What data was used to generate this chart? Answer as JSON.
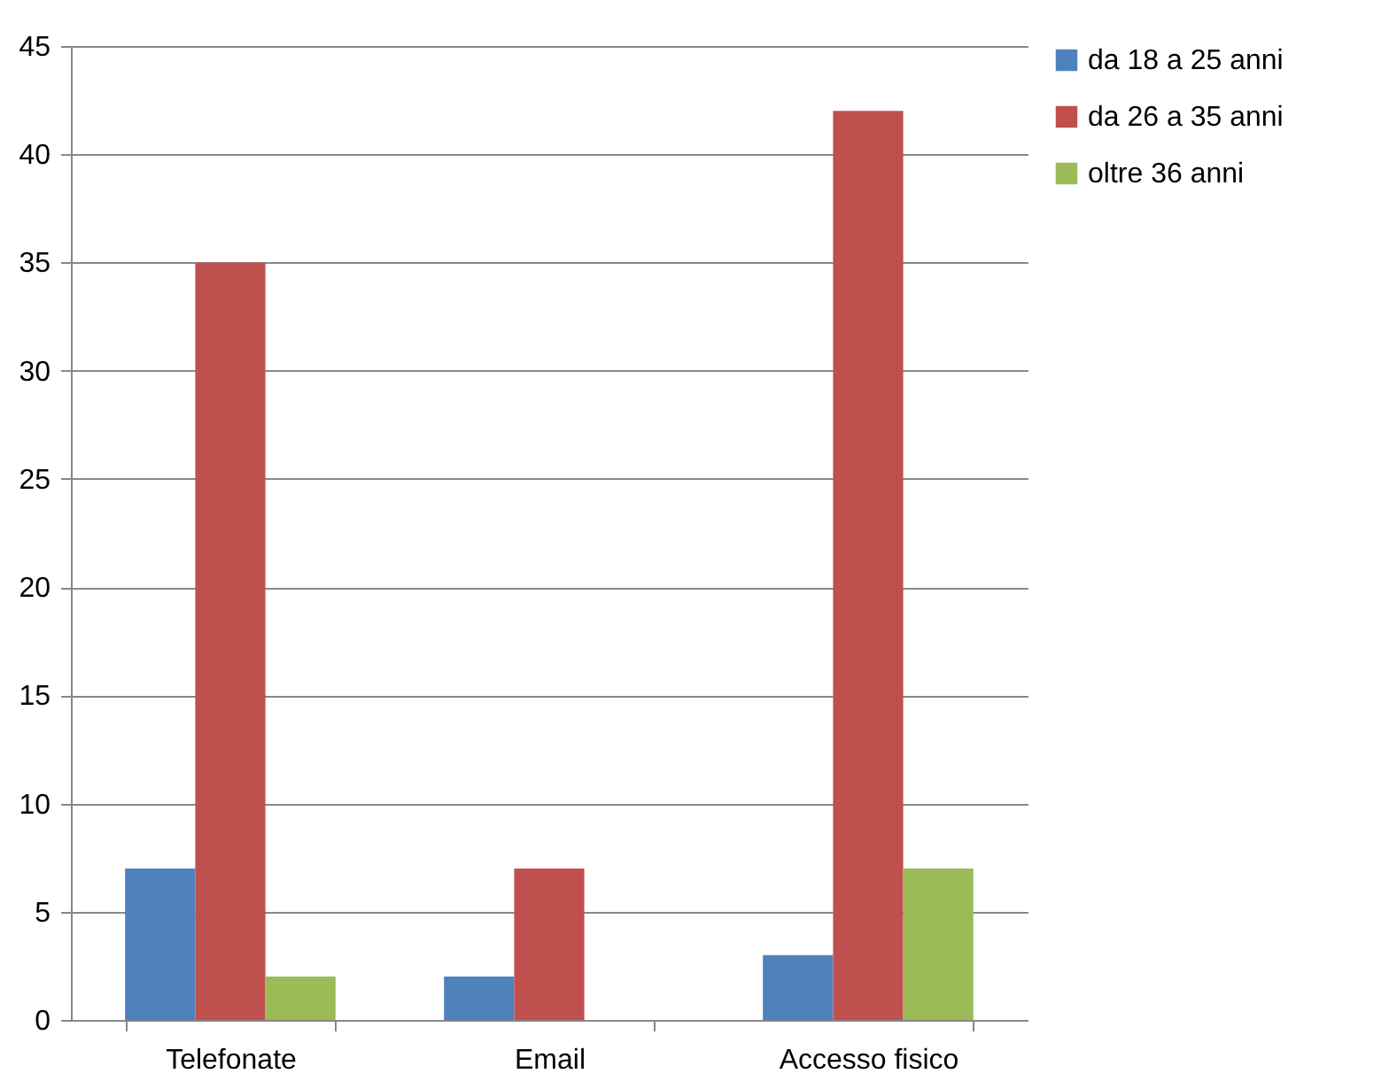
{
  "chart_data": {
    "type": "bar",
    "categories": [
      "Telefonate",
      "Email",
      "Accesso fisico"
    ],
    "series": [
      {
        "name": "da 18 a 25 anni",
        "color": "#4f81bd",
        "values": [
          7,
          2,
          3
        ]
      },
      {
        "name": "da 26 a 35 anni",
        "color": "#c0504d",
        "values": [
          35,
          7,
          42
        ]
      },
      {
        "name": "oltre 36 anni",
        "color": "#9bbb59",
        "values": [
          2,
          0,
          7
        ]
      }
    ],
    "ylim": [
      0,
      45
    ],
    "yticks": [
      0,
      5,
      10,
      15,
      20,
      25,
      30,
      35,
      40,
      45
    ],
    "grid": "y",
    "legend": "right"
  }
}
